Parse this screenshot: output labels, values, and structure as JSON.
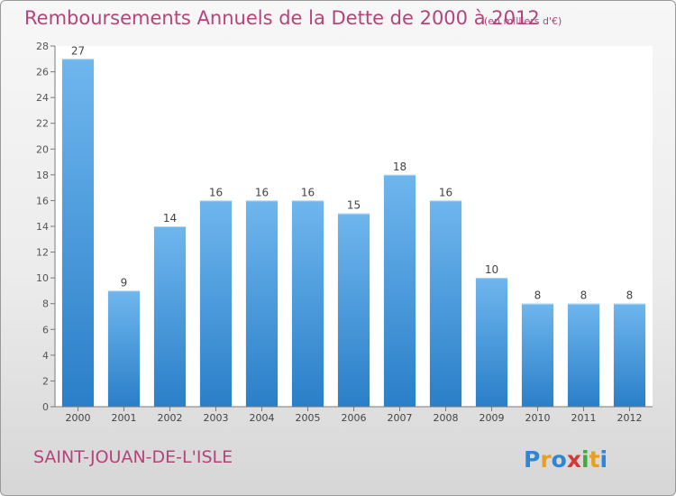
{
  "header": {
    "title": "Remboursements Annuels de la Dette de 2000 à 2012",
    "unit": "(en milliers d'€)"
  },
  "footer": {
    "commune": "SAINT-JOUAN-DE-L'ISLE",
    "logo_text": "Proxiti"
  },
  "colors": {
    "title": "#b5447a",
    "bar_top": "#6fb6ee",
    "bar_bottom": "#2a7fc8"
  },
  "chart_data": {
    "type": "bar",
    "categories": [
      "2000",
      "2001",
      "2002",
      "2003",
      "2004",
      "2005",
      "2006",
      "2007",
      "2008",
      "2009",
      "2010",
      "2011",
      "2012"
    ],
    "values": [
      27,
      9,
      14,
      16,
      16,
      16,
      15,
      18,
      16,
      10,
      8,
      8,
      8
    ],
    "title": "Remboursements Annuels de la Dette de 2000 à 2012",
    "xlabel": "",
    "ylabel": "",
    "ylim": [
      0,
      28
    ],
    "yticks": [
      0,
      2,
      4,
      6,
      8,
      10,
      12,
      14,
      16,
      18,
      20,
      22,
      24,
      26,
      28
    ],
    "grid": false,
    "legend": "none"
  }
}
